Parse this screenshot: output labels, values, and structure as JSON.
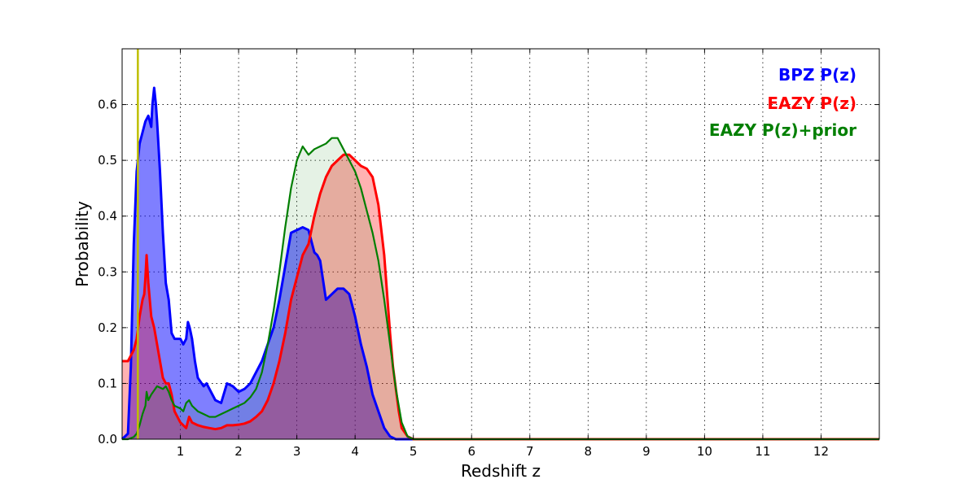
{
  "chart_data": {
    "type": "area",
    "xlabel": "Redshift z",
    "ylabel": "Probability",
    "xlim": [
      0,
      13
    ],
    "ylim": [
      0,
      0.7
    ],
    "xticks": [
      1,
      2,
      3,
      4,
      5,
      6,
      7,
      8,
      9,
      10,
      11,
      12
    ],
    "yticks": [
      0.0,
      0.1,
      0.2,
      0.3,
      0.4,
      0.5,
      0.6
    ],
    "grid": true,
    "legend_placement": "top-right",
    "vline": {
      "x": 0.27,
      "color": "#bfbf00"
    },
    "series": [
      {
        "name": "BPZ P(z)",
        "color": "#0000ff",
        "fill": "#0000ff",
        "fill_opacity": 0.5,
        "x": [
          0,
          0.1,
          0.15,
          0.2,
          0.25,
          0.3,
          0.35,
          0.4,
          0.45,
          0.5,
          0.52,
          0.55,
          0.58,
          0.6,
          0.65,
          0.7,
          0.75,
          0.8,
          0.85,
          0.9,
          1.0,
          1.05,
          1.1,
          1.13,
          1.16,
          1.2,
          1.25,
          1.3,
          1.4,
          1.45,
          1.5,
          1.6,
          1.7,
          1.8,
          1.9,
          2.0,
          2.1,
          2.2,
          2.3,
          2.4,
          2.5,
          2.6,
          2.7,
          2.8,
          2.9,
          3.0,
          3.1,
          3.2,
          3.3,
          3.35,
          3.4,
          3.5,
          3.55,
          3.6,
          3.7,
          3.8,
          3.9,
          4.0,
          4.1,
          4.2,
          4.3,
          4.4,
          4.5,
          4.6,
          4.7,
          4.8,
          5.0,
          6.0,
          13.0
        ],
        "y": [
          0.0,
          0.01,
          0.13,
          0.35,
          0.48,
          0.53,
          0.55,
          0.57,
          0.58,
          0.56,
          0.6,
          0.63,
          0.6,
          0.57,
          0.48,
          0.37,
          0.28,
          0.25,
          0.19,
          0.18,
          0.18,
          0.17,
          0.18,
          0.21,
          0.2,
          0.18,
          0.14,
          0.11,
          0.095,
          0.1,
          0.09,
          0.07,
          0.065,
          0.1,
          0.095,
          0.085,
          0.09,
          0.1,
          0.12,
          0.14,
          0.17,
          0.2,
          0.25,
          0.31,
          0.37,
          0.375,
          0.38,
          0.375,
          0.335,
          0.33,
          0.32,
          0.25,
          0.255,
          0.26,
          0.27,
          0.27,
          0.26,
          0.22,
          0.17,
          0.13,
          0.08,
          0.05,
          0.02,
          0.005,
          0.0,
          0.0,
          0.0,
          0.0,
          0.0
        ]
      },
      {
        "name": "EAZY P(z)",
        "color": "#ff0000",
        "fill": "#ff0000",
        "fill_opacity": 0.3,
        "x": [
          0,
          0.05,
          0.1,
          0.15,
          0.2,
          0.25,
          0.3,
          0.35,
          0.38,
          0.4,
          0.42,
          0.45,
          0.5,
          0.55,
          0.6,
          0.65,
          0.7,
          0.75,
          0.8,
          0.85,
          0.9,
          1.0,
          1.1,
          1.15,
          1.2,
          1.3,
          1.4,
          1.5,
          1.6,
          1.7,
          1.8,
          1.9,
          2.0,
          2.1,
          2.2,
          2.3,
          2.4,
          2.5,
          2.6,
          2.7,
          2.8,
          2.9,
          3.0,
          3.1,
          3.2,
          3.3,
          3.4,
          3.5,
          3.6,
          3.7,
          3.8,
          3.9,
          4.0,
          4.1,
          4.2,
          4.3,
          4.4,
          4.5,
          4.6,
          4.65,
          4.7,
          4.75,
          4.8,
          4.9,
          5.0,
          6.0,
          13.0
        ],
        "y": [
          0.14,
          0.14,
          0.14,
          0.15,
          0.16,
          0.18,
          0.22,
          0.25,
          0.26,
          0.29,
          0.33,
          0.28,
          0.22,
          0.2,
          0.17,
          0.14,
          0.11,
          0.1,
          0.1,
          0.08,
          0.05,
          0.03,
          0.02,
          0.04,
          0.03,
          0.025,
          0.022,
          0.02,
          0.018,
          0.02,
          0.025,
          0.025,
          0.026,
          0.028,
          0.032,
          0.04,
          0.05,
          0.07,
          0.1,
          0.14,
          0.19,
          0.25,
          0.29,
          0.33,
          0.35,
          0.4,
          0.44,
          0.47,
          0.49,
          0.5,
          0.51,
          0.51,
          0.5,
          0.49,
          0.485,
          0.47,
          0.42,
          0.33,
          0.19,
          0.13,
          0.09,
          0.05,
          0.02,
          0.005,
          0.0,
          0.0,
          0.0
        ]
      },
      {
        "name": "EAZY P(z)+prior",
        "color": "#007f00",
        "fill": "#007f00",
        "fill_opacity": 0.1,
        "x": [
          0,
          0.1,
          0.2,
          0.25,
          0.3,
          0.35,
          0.4,
          0.42,
          0.45,
          0.5,
          0.6,
          0.7,
          0.75,
          0.8,
          0.85,
          0.9,
          1.0,
          1.05,
          1.1,
          1.15,
          1.2,
          1.3,
          1.4,
          1.5,
          1.6,
          1.7,
          1.8,
          1.9,
          2.0,
          2.1,
          2.2,
          2.3,
          2.4,
          2.5,
          2.6,
          2.7,
          2.8,
          2.9,
          3.0,
          3.1,
          3.2,
          3.3,
          3.4,
          3.5,
          3.6,
          3.7,
          3.8,
          3.9,
          4.0,
          4.1,
          4.2,
          4.3,
          4.4,
          4.5,
          4.6,
          4.7,
          4.8,
          4.9,
          5.0,
          6.0,
          13.0
        ],
        "y": [
          0.0,
          0.0,
          0.004,
          0.01,
          0.025,
          0.045,
          0.06,
          0.085,
          0.07,
          0.08,
          0.095,
          0.09,
          0.095,
          0.085,
          0.07,
          0.06,
          0.055,
          0.05,
          0.065,
          0.07,
          0.06,
          0.05,
          0.045,
          0.04,
          0.04,
          0.045,
          0.05,
          0.055,
          0.06,
          0.065,
          0.075,
          0.09,
          0.12,
          0.17,
          0.23,
          0.3,
          0.38,
          0.45,
          0.5,
          0.525,
          0.51,
          0.52,
          0.525,
          0.53,
          0.54,
          0.54,
          0.52,
          0.5,
          0.48,
          0.45,
          0.41,
          0.37,
          0.32,
          0.25,
          0.17,
          0.09,
          0.03,
          0.005,
          0.0,
          0.0,
          0.0
        ]
      }
    ]
  }
}
